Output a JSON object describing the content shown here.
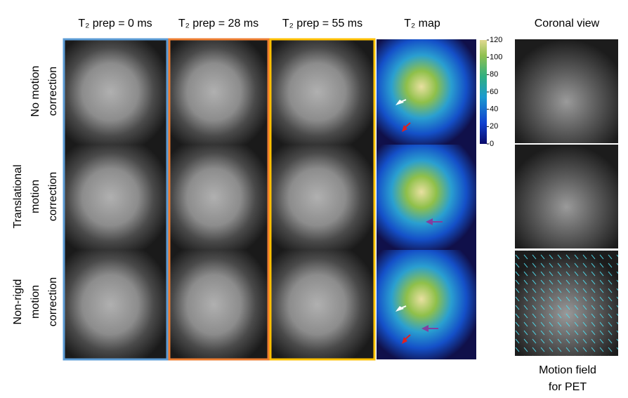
{
  "columns": [
    "T₂ prep = 0 ms",
    "T₂ prep = 28 ms",
    "T₂ prep = 55 ms",
    "T₂ map",
    "Coronal view"
  ],
  "rows": [
    [
      "No motion",
      "correction"
    ],
    [
      "Translational",
      "motion",
      "correction"
    ],
    [
      "Non-rigid",
      "motion",
      "correction"
    ]
  ],
  "colorbar": {
    "range": [
      0,
      120
    ],
    "ticks": [
      0,
      20,
      40,
      60,
      80,
      100,
      120
    ]
  },
  "caption": [
    "Motion field",
    "for PET"
  ]
}
